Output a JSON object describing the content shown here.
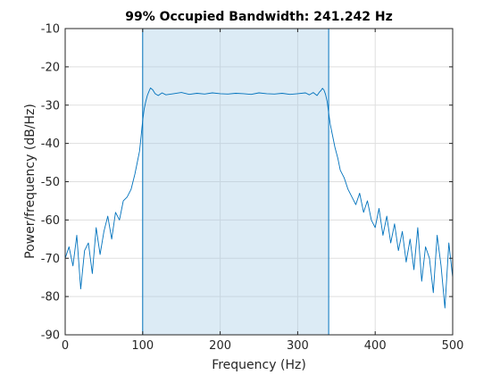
{
  "chart_data": {
    "type": "line",
    "title": "99% Occupied Bandwidth: 241.242 Hz",
    "xlabel": "Frequency (Hz)",
    "ylabel": "Power/frequency (dB/Hz)",
    "xlim": [
      0,
      500
    ],
    "ylim": [
      -90,
      -10
    ],
    "xticks": [
      0,
      100,
      200,
      300,
      400,
      500
    ],
    "xtick_labels": [
      "0",
      "100",
      "200",
      "300",
      "400",
      "500"
    ],
    "yticks": [
      -90,
      -80,
      -70,
      -60,
      -50,
      -40,
      -30,
      -20,
      -10
    ],
    "ytick_labels": [
      "-90",
      "-80",
      "-70",
      "-60",
      "-50",
      "-40",
      "-30",
      "-20",
      "-10"
    ],
    "grid": true,
    "occupied_band": {
      "low": 100,
      "high": 340
    },
    "series": [
      {
        "color": "#0072bd",
        "x": [
          0,
          5,
          10,
          15,
          20,
          25,
          30,
          35,
          40,
          45,
          50,
          55,
          60,
          65,
          70,
          75,
          80,
          85,
          90,
          93,
          96,
          98,
          100,
          102,
          104,
          106,
          108,
          110,
          113,
          116,
          120,
          125,
          130,
          140,
          150,
          160,
          170,
          180,
          190,
          200,
          210,
          220,
          230,
          240,
          250,
          260,
          270,
          280,
          290,
          300,
          310,
          315,
          320,
          325,
          328,
          330,
          332,
          334,
          336,
          338,
          340,
          342,
          345,
          348,
          352,
          355,
          360,
          365,
          370,
          375,
          380,
          385,
          390,
          395,
          400,
          405,
          410,
          415,
          420,
          425,
          430,
          435,
          440,
          445,
          450,
          455,
          460,
          465,
          470,
          475,
          480,
          485,
          490,
          495,
          500
        ],
        "y": [
          -70,
          -67,
          -72,
          -64,
          -78,
          -68,
          -66,
          -74,
          -62,
          -69,
          -63,
          -59,
          -65,
          -58,
          -60,
          -55,
          -54,
          -52,
          -48,
          -45,
          -42,
          -38,
          -34,
          -31,
          -29,
          -27.5,
          -26.5,
          -25.5,
          -26,
          -27,
          -27.5,
          -26.8,
          -27.3,
          -27,
          -26.7,
          -27.2,
          -26.9,
          -27.1,
          -26.8,
          -27,
          -27.1,
          -26.9,
          -27,
          -27.2,
          -26.8,
          -27,
          -27.1,
          -26.9,
          -27.2,
          -27,
          -26.8,
          -27.3,
          -26.7,
          -27.5,
          -26.6,
          -26.2,
          -25.6,
          -26.1,
          -27.2,
          -29,
          -32,
          -35,
          -38,
          -41,
          -44,
          -47,
          -49,
          -52,
          -54,
          -56,
          -53,
          -58,
          -55,
          -60,
          -62,
          -57,
          -64,
          -59,
          -66,
          -61,
          -68,
          -63,
          -71,
          -65,
          -73,
          -62,
          -76,
          -67,
          -70,
          -79,
          -64,
          -72,
          -83,
          -66,
          -75
        ]
      }
    ]
  }
}
